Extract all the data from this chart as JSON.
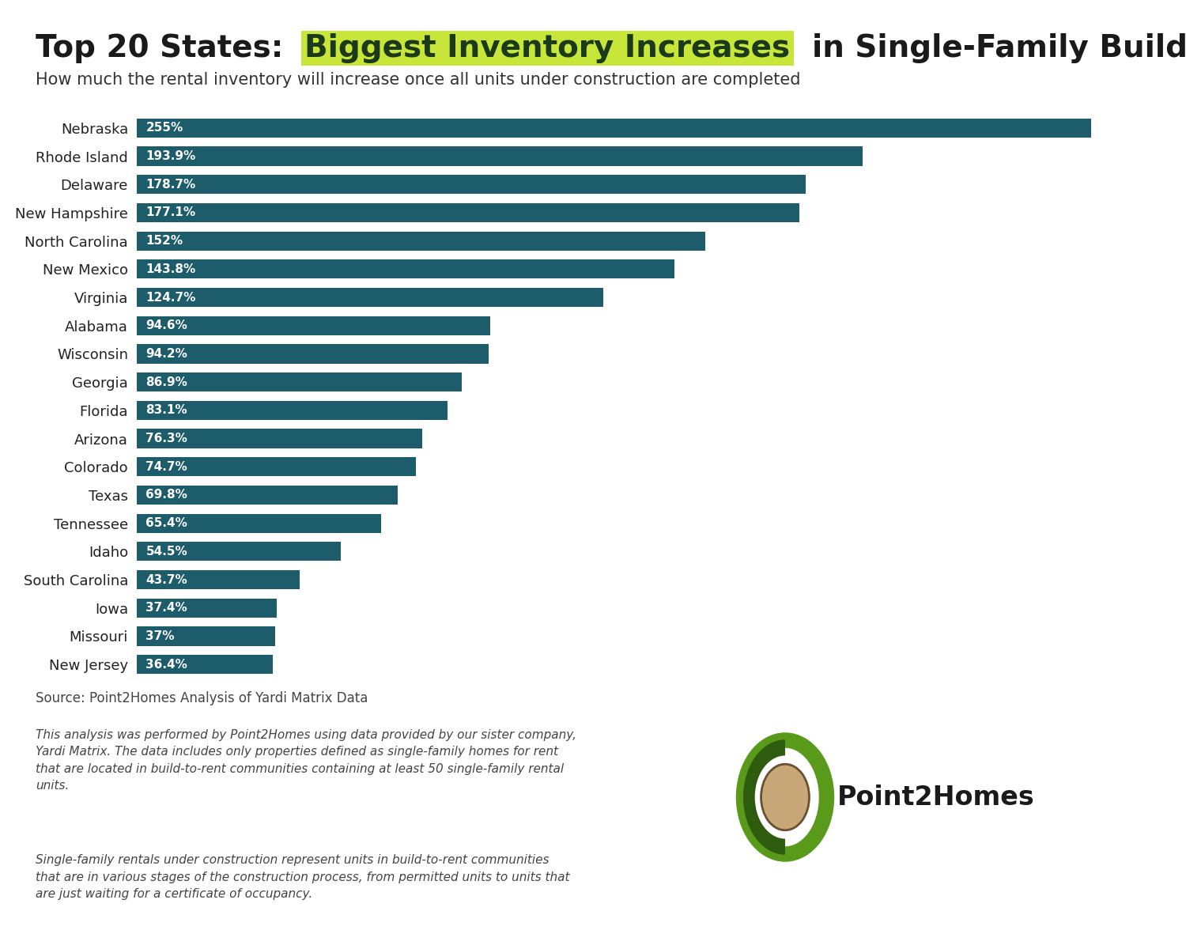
{
  "states": [
    "Nebraska",
    "Rhode Island",
    "Delaware",
    "New Hampshire",
    "North Carolina",
    "New Mexico",
    "Virginia",
    "Alabama",
    "Wisconsin",
    "Georgia",
    "Florida",
    "Arizona",
    "Colorado",
    "Texas",
    "Tennessee",
    "Idaho",
    "South Carolina",
    "Iowa",
    "Missouri",
    "New Jersey"
  ],
  "values": [
    255.0,
    193.9,
    178.7,
    177.1,
    152.0,
    143.8,
    124.7,
    94.6,
    94.2,
    86.9,
    83.1,
    76.3,
    74.7,
    69.8,
    65.4,
    54.5,
    43.7,
    37.4,
    37.0,
    36.4
  ],
  "labels": [
    "255%",
    "193.9%",
    "178.7%",
    "177.1%",
    "152%",
    "143.8%",
    "124.7%",
    "94.6%",
    "94.2%",
    "86.9%",
    "83.1%",
    "76.3%",
    "74.7%",
    "69.8%",
    "65.4%",
    "54.5%",
    "43.7%",
    "37.4%",
    "37%",
    "36.4%"
  ],
  "bar_color": "#1d5c6b",
  "background_color": "#ffffff",
  "title_part1": "Top 20 States:  ",
  "title_highlight": "Biggest Inventory Increases",
  "title_part2": "  in Single-Family Build-to-Rent",
  "highlight_bg": "#c8e639",
  "highlight_fg": "#1a3a1a",
  "subtitle": "How much the rental inventory will increase once all units under construction are completed",
  "source_text": "Source: Point2Homes Analysis of Yardi Matrix Data",
  "footnote1": "This analysis was performed by Point2Homes using data provided by our sister company,\nYardi Matrix. The data includes only properties defined as single-family homes for rent\nthat are located in build-to-rent communities containing at least 50 single-family rental\nunits.",
  "footnote2": "Single-family rentals under construction represent units in build-to-rent communities\nthat are in various stages of the construction process, from permitted units to units that\nare just waiting for a certificate of occupancy.",
  "title_fontsize": 28,
  "subtitle_fontsize": 15,
  "bar_label_fontsize": 11,
  "state_label_fontsize": 13,
  "source_fontsize": 12,
  "footnote_fontsize": 11
}
